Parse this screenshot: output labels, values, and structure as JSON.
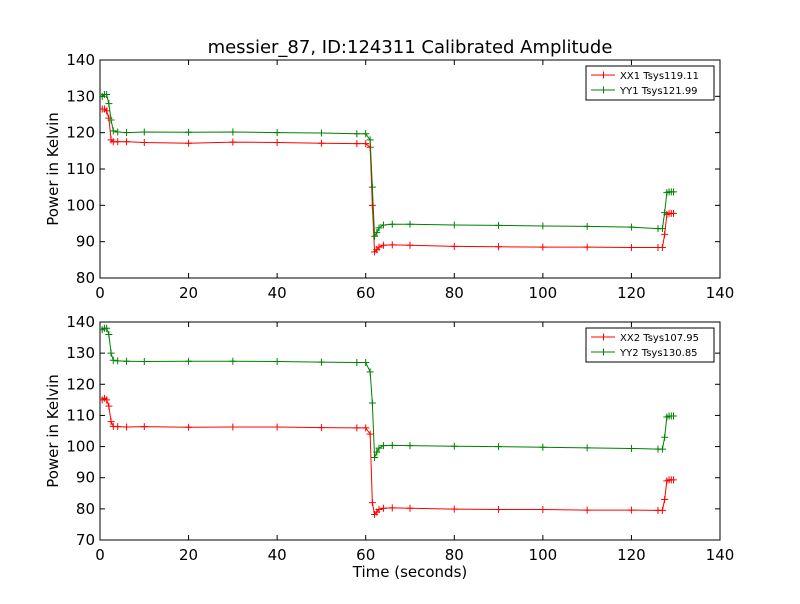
{
  "title": "messier_87, ID:124311 Calibrated Amplitude",
  "colors": {
    "xx": "#ff0000",
    "yy": "#008000"
  },
  "chart_data": [
    {
      "type": "line",
      "ylabel": "Power in Kelvin",
      "xlabel": "",
      "xlim": [
        0,
        140
      ],
      "ylim": [
        80,
        140
      ],
      "xticks": [
        "0",
        "20",
        "40",
        "60",
        "80",
        "100",
        "120",
        "140"
      ],
      "yticks": [
        "80",
        "90",
        "100",
        "110",
        "120",
        "130",
        "140"
      ],
      "legend": "top-right",
      "series": [
        {
          "name": "XX1 Tsys119.11",
          "color": "#ff0000",
          "x": [
            0.5,
            1,
            1.5,
            2,
            2.5,
            3,
            4,
            6,
            10,
            20,
            30,
            40,
            50,
            58,
            60,
            61,
            61.5,
            62,
            62.5,
            63,
            64,
            66,
            70,
            80,
            90,
            100,
            110,
            120,
            126,
            127,
            127.5,
            128,
            128.5,
            129,
            129.5
          ],
          "y": [
            126.5,
            126.5,
            126,
            124,
            118,
            117.5,
            117.5,
            117.5,
            117.3,
            117.1,
            117.4,
            117.3,
            117.1,
            117.0,
            117,
            116,
            100,
            87.2,
            87.8,
            88.5,
            89.0,
            89.1,
            89.0,
            88.7,
            88.6,
            88.5,
            88.5,
            88.4,
            88.4,
            88.4,
            92,
            97.5,
            97.8,
            97.8,
            97.8
          ]
        },
        {
          "name": "YY1 Tsys121.99",
          "color": "#008000",
          "x": [
            0.5,
            1,
            1.5,
            2,
            2.5,
            3,
            4,
            6,
            10,
            20,
            30,
            40,
            50,
            58,
            60,
            61,
            61.5,
            62,
            62.5,
            63,
            64,
            66,
            70,
            80,
            90,
            100,
            110,
            120,
            126,
            127,
            127.5,
            128,
            128.5,
            129,
            129.5
          ],
          "y": [
            130,
            130.5,
            130.5,
            128,
            123.5,
            120.5,
            120.2,
            120.0,
            120.2,
            120.1,
            120.2,
            120.0,
            119.9,
            119.7,
            119.7,
            118,
            105,
            91.5,
            92.5,
            93.8,
            94.6,
            94.8,
            94.8,
            94.6,
            94.5,
            94.3,
            94.2,
            94.0,
            93.6,
            93.6,
            98,
            103.5,
            103.7,
            103.7,
            103.7
          ]
        }
      ]
    },
    {
      "type": "line",
      "ylabel": "Power in Kelvin",
      "xlabel": "Time (seconds)",
      "xlim": [
        0,
        140
      ],
      "ylim": [
        70,
        140
      ],
      "xticks": [
        "0",
        "20",
        "40",
        "60",
        "80",
        "100",
        "120",
        "140"
      ],
      "yticks": [
        "70",
        "80",
        "90",
        "100",
        "110",
        "120",
        "130",
        "140"
      ],
      "legend": "top-right",
      "series": [
        {
          "name": "XX2 Tsys107.95",
          "color": "#ff0000",
          "x": [
            0.5,
            1,
            1.5,
            2,
            2.5,
            3,
            4,
            6,
            10,
            20,
            30,
            40,
            50,
            58,
            60,
            61,
            61.5,
            62,
            62.5,
            63,
            64,
            66,
            70,
            80,
            90,
            100,
            110,
            120,
            126,
            127,
            127.5,
            128,
            128.5,
            129,
            129.5
          ],
          "y": [
            115,
            115.5,
            115,
            113,
            108,
            106.5,
            106.4,
            106.3,
            106.4,
            106.2,
            106.3,
            106.3,
            106.1,
            106.0,
            106,
            104,
            82,
            78.2,
            79.0,
            79.8,
            80.2,
            80.3,
            80.2,
            79.9,
            79.8,
            79.8,
            79.6,
            79.6,
            79.5,
            79.5,
            83,
            89,
            89.3,
            89.3,
            89.3
          ]
        },
        {
          "name": "YY2 Tsys130.85",
          "color": "#008000",
          "x": [
            0.5,
            1,
            1.5,
            2,
            2.5,
            3,
            4,
            6,
            10,
            20,
            30,
            40,
            50,
            58,
            60,
            61,
            61.5,
            62,
            62.5,
            63,
            64,
            66,
            70,
            80,
            90,
            100,
            110,
            120,
            126,
            127,
            127.5,
            128,
            128.5,
            129,
            129.5
          ],
          "y": [
            137.5,
            138,
            138,
            136,
            130,
            127.7,
            127.5,
            127.4,
            127.3,
            127.4,
            127.4,
            127.3,
            127.1,
            127.0,
            127,
            124,
            114,
            96.5,
            98.2,
            99.5,
            100.3,
            100.4,
            100.3,
            100.1,
            100.0,
            99.8,
            99.6,
            99.4,
            99.2,
            99.2,
            103,
            109.5,
            109.8,
            109.8,
            109.8
          ]
        }
      ]
    }
  ]
}
